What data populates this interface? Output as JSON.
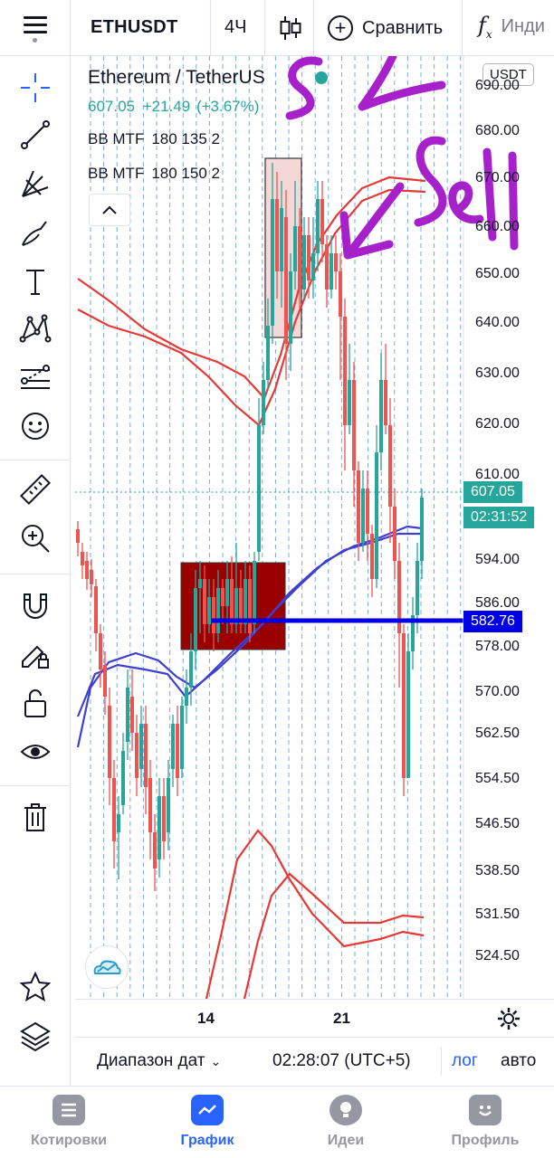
{
  "toolbar": {
    "symbol": "ETHUSDT",
    "interval": "4Ч",
    "compare_label": "Сравнить",
    "indicators_label": "Инди"
  },
  "left_tools": [
    {
      "icon": "crosshair-icon"
    },
    {
      "icon": "trend-line-icon"
    },
    {
      "icon": "fib-icon"
    },
    {
      "icon": "brush-icon"
    },
    {
      "icon": "text-icon"
    },
    {
      "icon": "pattern-icon"
    },
    {
      "icon": "prediction-icon"
    },
    {
      "icon": "emoji-icon"
    },
    {
      "icon": "ruler-icon"
    },
    {
      "icon": "zoom-in-icon"
    },
    {
      "icon": "magnet-icon"
    },
    {
      "icon": "lock-drawing-icon"
    },
    {
      "icon": "unlock-icon"
    },
    {
      "icon": "eye-icon"
    },
    {
      "icon": "trash-icon"
    },
    {
      "icon": "star-icon"
    },
    {
      "icon": "layers-icon"
    }
  ],
  "legend": {
    "title": "Ethereum / TetherUS",
    "price": "607.05",
    "change": "+21.49",
    "change_pct": "(+3.67%)",
    "indicators": [
      {
        "name": "BB MTF",
        "params": "180 135 2"
      },
      {
        "name": "BB MTF",
        "params": "180 150 2"
      }
    ]
  },
  "currency": "USDT",
  "annotations": {
    "handwriting_1": "SL",
    "handwriting_2": "Sell"
  },
  "price_scale": [
    "690.00",
    "680.00",
    "670.00",
    "660.00",
    "650.00",
    "640.00",
    "630.00",
    "620.00",
    "610.00",
    "594.00",
    "586.00",
    "578.00",
    "570.00",
    "562.50",
    "554.50",
    "546.50",
    "538.50",
    "531.50",
    "524.50"
  ],
  "price_tags": {
    "last_price": "607.05",
    "countdown": "02:31:52",
    "level_line": "582.76"
  },
  "time_scale": [
    "14",
    "21"
  ],
  "controls": {
    "range": "Диапазон дат",
    "time": "02:28:07 (UTC+5)",
    "log": "лог",
    "auto": "авто"
  },
  "bottom_nav": [
    {
      "label": "Котировки",
      "icon": "quotes-icon",
      "active": false
    },
    {
      "label": "График",
      "icon": "chart-icon",
      "active": true
    },
    {
      "label": "Идеи",
      "icon": "ideas-icon",
      "active": false
    },
    {
      "label": "Профиль",
      "icon": "profile-icon",
      "active": false
    }
  ],
  "colors": {
    "up": "#26a69a",
    "down": "#ef5350",
    "accent": "#2962ff",
    "band_upper": "#e53935",
    "band_lower": "#3f3fd0",
    "marker": "#a621c9",
    "demand_zone": "#9b0000",
    "supply_zone": "#f4d7d7"
  }
}
